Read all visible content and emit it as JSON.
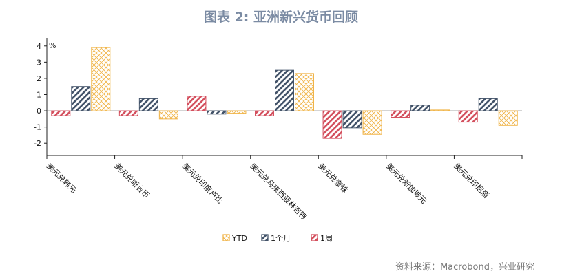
{
  "title": "图表 2:   亚洲新兴货币回顾",
  "source": "资料来源：Macrobond，兴业研究",
  "chart_data": {
    "type": "bar",
    "ylabel": "%",
    "ylim": [
      -2.5,
      4.5
    ],
    "yticks": [
      4,
      3,
      2,
      1,
      0,
      -1,
      -2
    ],
    "categories": [
      "美元兑韩元",
      "美元兑新台币",
      "美元兑印度卢比",
      "美元兑马来西亚林吉特",
      "美元兑泰铢",
      "美元兑新加坡元",
      "美元兑印尼盾"
    ],
    "series": [
      {
        "name": "1周",
        "color": "#d4515f",
        "values": [
          -0.3,
          -0.3,
          0.9,
          -0.3,
          -1.7,
          -0.4,
          -0.7
        ]
      },
      {
        "name": "1个月",
        "color": "#44546a",
        "values": [
          1.5,
          0.75,
          -0.2,
          2.5,
          -1.05,
          0.35,
          0.75
        ]
      },
      {
        "name": "YTD",
        "color": "#f0b448",
        "values": [
          3.9,
          -0.5,
          -0.15,
          2.3,
          -1.45,
          0.05,
          -0.9
        ]
      }
    ],
    "legend": [
      "YTD",
      "1个月",
      "1周"
    ],
    "legend_position": "bottom",
    "grid": false
  }
}
